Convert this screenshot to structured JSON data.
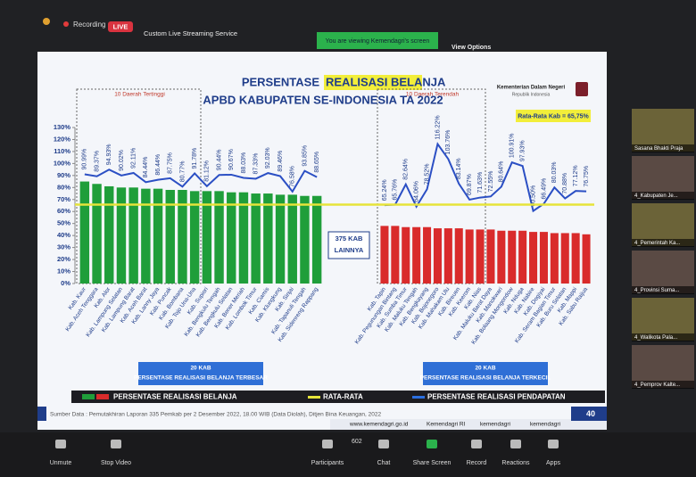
{
  "zoom": {
    "recording": "Recording",
    "live": "LIVE",
    "stream": "Custom Live Streaming Service",
    "banner": "You are viewing Kemendagri's screen",
    "view_options": "View Options",
    "thumbnails": [
      "Sasana Bhakti Praja",
      "4_Kabupaten Je...",
      "4_Pemerintah Ka...",
      "4_Provinsi Suma...",
      "4_Walikota Pala...",
      "4_Pemprov Kalte..."
    ],
    "participants_count": 602,
    "toolbar": [
      "Unmute",
      "Stop Video",
      "Participants",
      "Chat",
      "Share Screen",
      "Record",
      "Reactions",
      "Apps"
    ]
  },
  "slide": {
    "ministry": "Kementerian Dalam Negeri",
    "ministry_sub": "Republik Indonesia",
    "source": "Sumber Data : Pemutakhiran Laporan 335 Pemkab per 2 Desember 2022, 18.00 WIB (Data Diolah), Ditjen Bina Keuangan, 2022",
    "website": "www.kemendagri.go.id",
    "facebook": "Kemendagri RI",
    "twitter": "kemendagri",
    "instagram": "kemendagri",
    "page": 40
  },
  "chart_data": {
    "type": "bar",
    "title": "PERSENTASE",
    "title_highlight": "REALISASI BELANJA",
    "subtitle": "APBD KABUPATEN SE-INDONESIA TA 2022",
    "ylim": [
      0,
      130
    ],
    "yticks": [
      {
        "value": 0,
        "label": "0%"
      },
      {
        "value": 10,
        "label": "10%"
      },
      {
        "value": 20,
        "label": "20%"
      },
      {
        "value": 30,
        "label": "30%"
      },
      {
        "value": 40,
        "label": "40%"
      },
      {
        "value": 50,
        "label": "50%"
      },
      {
        "value": 60,
        "label": "60%"
      },
      {
        "value": 70,
        "label": "70%"
      },
      {
        "value": 80,
        "label": "80%"
      },
      {
        "value": 90,
        "label": "90%"
      },
      {
        "value": 100,
        "label": "100%"
      },
      {
        "value": 110,
        "label": "110%"
      },
      {
        "value": 120,
        "label": "120%"
      },
      {
        "value": 130,
        "label": "130%"
      }
    ],
    "revenue_color": "#2b4fc4",
    "average": {
      "name": "RATA-RATA",
      "value": 65.75,
      "label": "Rata-Rata Kab = 65,75%",
      "color": "#e6e43a"
    },
    "legend": {
      "spending": "PERSENTASE REALISASI BELANJA",
      "average": "RATA-RATA",
      "revenue": "PERSENTASE REALISASI PENDAPATAN"
    },
    "gap_label": [
      "375 KAB",
      "LAINNYA"
    ],
    "groups": [
      {
        "note": "10 Daerah Tertinggi",
        "caption": [
          "20 KAB",
          "PERSENTASE REALISASI BELANJA TERBESAR"
        ],
        "color": "#1f9e3a",
        "categories": [
          "Kab. Kaur",
          "Kab. Aceh Tenggara",
          "Kab. Alor",
          "Kab. Lampung Selatan",
          "Kab. Lampung Barat",
          "Kab. Aceh Barat",
          "Kab. Lanny Jaya",
          "Kab. Puncak",
          "Kab. Bombana",
          "Kab. Tojo Una-Una",
          "Kab. Supiori",
          "Kab. Bengkulu Tengah",
          "Kab. Bengkulu Selatan",
          "Kab. Bener Meriah",
          "Kab. Lombok Timur",
          "Kab. Ciamis",
          "Kab. Klungkung",
          "Kab. Sinjai",
          "Kab. Tapanuli Tengah",
          "Kab. Sidenreng Rappang"
        ],
        "spending": [
          85,
          83,
          81,
          80,
          80,
          79,
          79,
          78,
          78,
          77,
          77,
          77,
          76,
          76,
          75,
          75,
          74,
          74,
          73,
          73
        ],
        "revenue": [
          90.99,
          89.37,
          94.93,
          90.02,
          92.11,
          84.44,
          86.44,
          87.75,
          80.77,
          91.78,
          81.12,
          90.44,
          90.67,
          88.03,
          87.33,
          92.03,
          89.46,
          76.58,
          93.85,
          88.65
        ],
        "revenue_labels": [
          "90.99%",
          "89.37%",
          "94.93%",
          "90.02%",
          "92.11%",
          "84.44%",
          "86.44%",
          "87.75%",
          "80.77%",
          "91.78%",
          "81.12%",
          "90.44%",
          "90.67%",
          "88.03%",
          "87.33%",
          "92.03%",
          "89.46%",
          "76.58%",
          "93.85%",
          "88.65%"
        ]
      },
      {
        "note": "10 Daerah Terendah",
        "caption": [
          "20 KAB",
          "PERSENTASE REALISASI BELANJA TERKECIL"
        ],
        "color": "#d92b2b",
        "categories": [
          "Kab. Tapin",
          "Kab. Pegunungan Bintang",
          "Kab. Sumba Timur",
          "Kab. Maluku Tengah",
          "Kab. Bengkayang",
          "Kab. Bojonegoro",
          "Kab. Mahakam Ulu",
          "Kab. Bireuen",
          "Kab. Keerom",
          "Kab. Nias",
          "Kab. Maluku Barat Daya",
          "Kab. Manokwari",
          "Kab. Bolaang Mongondow",
          "Kab. Nduga",
          "Kab. Nabire",
          "Kab. Dogiyai",
          "Kab. Seram Bagian Timur",
          "Kab. Buru Selatan",
          "Kab. Mappi",
          "Kab. Sabu Raijua"
        ],
        "spending": [
          48,
          48,
          47,
          47,
          47,
          46,
          46,
          46,
          45,
          45,
          45,
          44,
          44,
          44,
          43,
          43,
          42,
          42,
          42,
          41
        ],
        "revenue": [
          65.24,
          65.76,
          82.64,
          64.06,
          78.52,
          116.22,
          103.76,
          83.14,
          69.87,
          71.63,
          72.55,
          80.64,
          100.91,
          97.93,
          60.5,
          66.49,
          80.03,
          70.88,
          77.12,
          76.75
        ],
        "revenue_labels": [
          "65.24%",
          "65.76%",
          "82.64%",
          "64.06%",
          "78.52%",
          "116.22%",
          "103.76%",
          "83.14%",
          "69.87%",
          "71.63%",
          "72.55%",
          "80.64%",
          "100.91%",
          "97.93%",
          "60.50%",
          "66.49%",
          "80.03%",
          "70.88%",
          "77.12%",
          "76.75%"
        ]
      }
    ]
  }
}
